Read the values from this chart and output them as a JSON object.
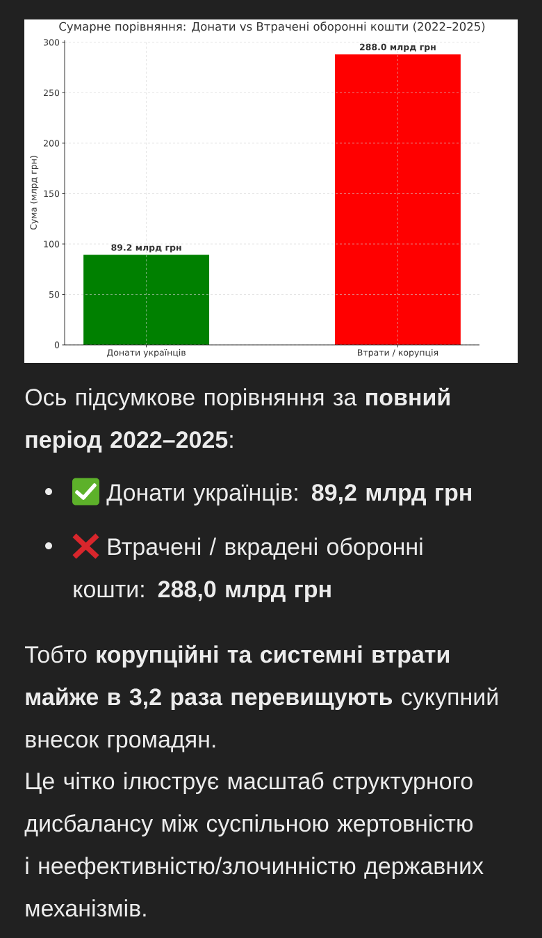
{
  "chart_data": {
    "type": "bar",
    "title": "Сумарне порівняння: Донати vs Втрачені оборонні кошти (2022–2025)",
    "ylabel": "Сума (млрд грн)",
    "categories": [
      "Донати українців",
      "Втрати / корупція"
    ],
    "values": [
      89.2,
      288.0
    ],
    "colors": [
      "#008000",
      "#ff0000"
    ],
    "value_labels": [
      "89.2 млрд грн",
      "288.0 млрд грн"
    ],
    "ylim": [
      0,
      302
    ],
    "yticks": [
      0,
      50,
      100,
      150,
      200,
      250,
      300
    ],
    "grid": true,
    "annotations": [
      "Ось підсумкове порівняння за **повний період 2022–2025**:",
      "Донати українців: **89,2 млрд грн**",
      "Втрачені / вкрадені оборонні кошти: **288,0 млрд грн**",
      "Тобто **корупційні та системні втрати майже в 3,2 раза перевищують** сукупний внесок громадян.",
      "Це чітко ілюструє масштаб структурного дисбалансу між суспільною жертовністю і неефективністю/злочинністю державних механізмів."
    ]
  }
}
